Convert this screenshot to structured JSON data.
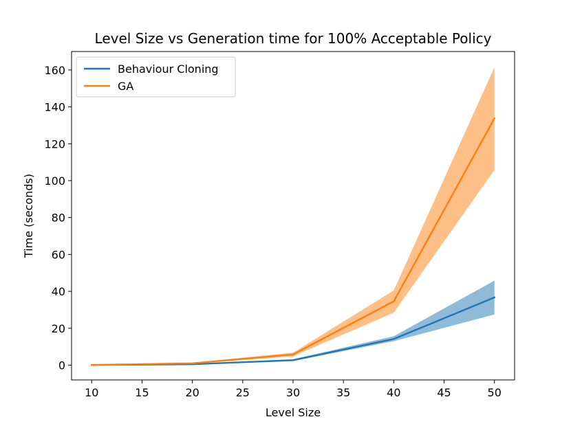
{
  "chart_data": {
    "type": "line",
    "title": "Level Size vs Generation time for 100% Acceptable Policy",
    "xlabel": "Level Size",
    "ylabel": "Time (seconds)",
    "x": [
      10,
      20,
      30,
      40,
      50
    ],
    "xlim": [
      8,
      52
    ],
    "ylim": [
      -8,
      170
    ],
    "xticks": [
      10,
      15,
      20,
      25,
      30,
      35,
      40,
      45,
      50
    ],
    "yticks": [
      0,
      20,
      40,
      60,
      80,
      100,
      120,
      140,
      160
    ],
    "legend_position": "top-left",
    "series": [
      {
        "name": "Behaviour Cloning",
        "color": "#1f77b4",
        "values": [
          0.1,
          0.5,
          2.7,
          14.2,
          36.7
        ],
        "lower": [
          0.0,
          0.3,
          2.2,
          13.0,
          27.5
        ],
        "upper": [
          0.2,
          0.7,
          3.2,
          15.7,
          45.8
        ]
      },
      {
        "name": "GA",
        "color": "#ff7f0e",
        "values": [
          0.1,
          1.0,
          5.8,
          34.6,
          133.8
        ],
        "lower": [
          0.0,
          0.8,
          4.8,
          28.5,
          105.8
        ],
        "upper": [
          0.2,
          1.3,
          6.8,
          40.5,
          161.5
        ]
      }
    ]
  }
}
